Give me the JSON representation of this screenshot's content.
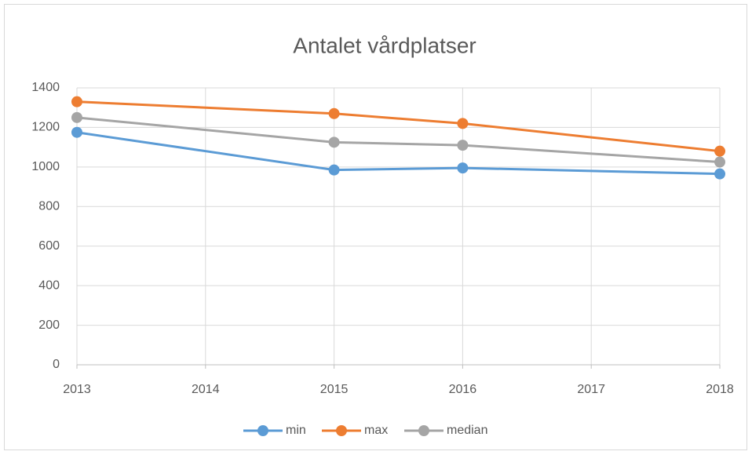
{
  "chart_data": {
    "type": "line",
    "title": "Antalet vårdplatser",
    "x": [
      2013,
      2015,
      2016,
      2018
    ],
    "series": [
      {
        "name": "min",
        "color": "#5b9bd5",
        "values": [
          1175,
          985,
          995,
          965
        ]
      },
      {
        "name": "max",
        "color": "#ed7d31",
        "values": [
          1330,
          1270,
          1220,
          1080
        ]
      },
      {
        "name": "median",
        "color": "#a5a5a5",
        "values": [
          1250,
          1125,
          1110,
          1025
        ]
      }
    ],
    "xlim": [
      2013,
      2018
    ],
    "xticks": [
      2013,
      2014,
      2015,
      2016,
      2017,
      2018
    ],
    "ylim": [
      0,
      1400
    ],
    "yticks": [
      0,
      200,
      400,
      600,
      800,
      1000,
      1200,
      1400
    ],
    "grid": true,
    "legend": "bottom"
  }
}
